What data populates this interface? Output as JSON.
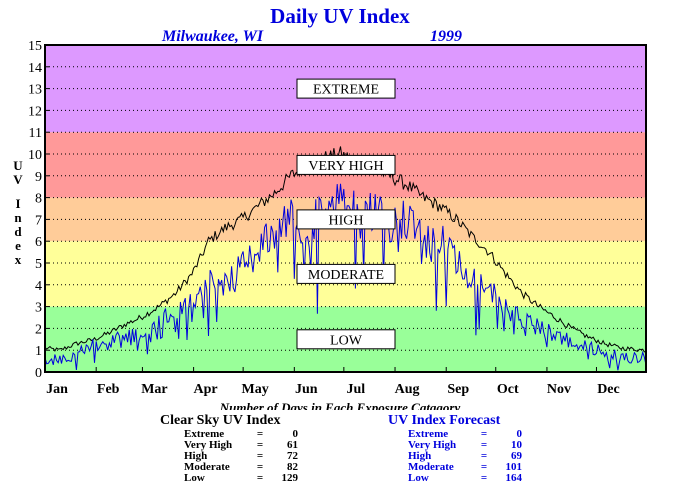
{
  "chart_data": {
    "type": "line",
    "title": "Daily UV Index",
    "location": "Milwaukee, WI",
    "year": "1999",
    "ylabel": "UV Index",
    "ylim": [
      0,
      15
    ],
    "y_ticks": [
      0,
      1,
      2,
      3,
      4,
      5,
      6,
      7,
      8,
      9,
      10,
      11,
      12,
      13,
      14,
      15
    ],
    "x_ticks": [
      "Jan",
      "Feb",
      "Mar",
      "Apr",
      "May",
      "Jun",
      "Jul",
      "Aug",
      "Sep",
      "Oct",
      "Nov",
      "Dec"
    ],
    "grid": true,
    "bands": [
      {
        "label": "LOW",
        "from": 0,
        "to": 3,
        "color": "#99ff99"
      },
      {
        "label": "MODERATE",
        "from": 3,
        "to": 6,
        "color": "#ffff99"
      },
      {
        "label": "HIGH",
        "from": 6,
        "to": 8,
        "color": "#ffcc99"
      },
      {
        "label": "VERY HIGH",
        "from": 8,
        "to": 11,
        "color": "#ff9999"
      },
      {
        "label": "EXTREME",
        "from": 11,
        "to": 15,
        "color": "#dd99ff"
      }
    ],
    "series": [
      {
        "name": "Clear Sky UV Index",
        "color": "#000000",
        "points": [
          [
            1,
            1.1
          ],
          [
            10,
            1.0
          ],
          [
            20,
            1.3
          ],
          [
            31,
            1.5
          ],
          [
            40,
            1.8
          ],
          [
            50,
            2.2
          ],
          [
            59,
            2.5
          ],
          [
            70,
            3.0
          ],
          [
            80,
            3.6
          ],
          [
            90,
            4.5
          ],
          [
            95,
            5.2
          ],
          [
            100,
            6.0
          ],
          [
            110,
            6.6
          ],
          [
            120,
            7.0
          ],
          [
            130,
            7.6
          ],
          [
            140,
            8.2
          ],
          [
            150,
            9.0
          ],
          [
            160,
            9.5
          ],
          [
            170,
            9.8
          ],
          [
            180,
            10.0
          ],
          [
            190,
            9.6
          ],
          [
            200,
            9.3
          ],
          [
            210,
            9.0
          ],
          [
            220,
            8.6
          ],
          [
            230,
            8.0
          ],
          [
            240,
            7.6
          ],
          [
            250,
            7.0
          ],
          [
            260,
            6.2
          ],
          [
            270,
            5.5
          ],
          [
            280,
            4.5
          ],
          [
            290,
            3.6
          ],
          [
            300,
            3.0
          ],
          [
            310,
            2.5
          ],
          [
            320,
            2.0
          ],
          [
            330,
            1.6
          ],
          [
            340,
            1.3
          ],
          [
            350,
            1.1
          ],
          [
            365,
            1.0
          ]
        ]
      },
      {
        "name": "UV Index Forecast",
        "color": "#0000dd",
        "points": [
          [
            1,
            0.4
          ],
          [
            10,
            0.6
          ],
          [
            20,
            0.8
          ],
          [
            31,
            1.2
          ],
          [
            40,
            1.4
          ],
          [
            50,
            1.5
          ],
          [
            59,
            1.8
          ],
          [
            70,
            2.2
          ],
          [
            80,
            2.8
          ],
          [
            90,
            3.2
          ],
          [
            100,
            4.5
          ],
          [
            110,
            4.0
          ],
          [
            120,
            5.0
          ],
          [
            130,
            5.5
          ],
          [
            140,
            6.5
          ],
          [
            150,
            7.0
          ],
          [
            160,
            6.5
          ],
          [
            170,
            7.5
          ],
          [
            180,
            8.0
          ],
          [
            190,
            7.2
          ],
          [
            200,
            7.5
          ],
          [
            210,
            6.8
          ],
          [
            220,
            7.0
          ],
          [
            230,
            6.0
          ],
          [
            240,
            6.2
          ],
          [
            250,
            5.0
          ],
          [
            260,
            4.2
          ],
          [
            270,
            3.8
          ],
          [
            280,
            3.0
          ],
          [
            290,
            2.4
          ],
          [
            300,
            2.0
          ],
          [
            310,
            1.7
          ],
          [
            320,
            1.5
          ],
          [
            330,
            1.1
          ],
          [
            340,
            0.9
          ],
          [
            350,
            0.7
          ],
          [
            365,
            0.6
          ]
        ]
      }
    ]
  },
  "subtitle": "Number of Days in Each Exposure Catagory",
  "stats": {
    "clear": {
      "title": "Clear Sky UV Index",
      "rows": [
        {
          "label": "Extreme",
          "value": "0"
        },
        {
          "label": "Very High",
          "value": "61"
        },
        {
          "label": "High",
          "value": "72"
        },
        {
          "label": "Moderate",
          "value": "82"
        },
        {
          "label": "Low",
          "value": "129"
        }
      ]
    },
    "forecast": {
      "title": "UV Index Forecast",
      "rows": [
        {
          "label": "Extreme",
          "value": "0"
        },
        {
          "label": "Very High",
          "value": "10"
        },
        {
          "label": "High",
          "value": "69"
        },
        {
          "label": "Moderate",
          "value": "101"
        },
        {
          "label": "Low",
          "value": "164"
        }
      ]
    }
  }
}
